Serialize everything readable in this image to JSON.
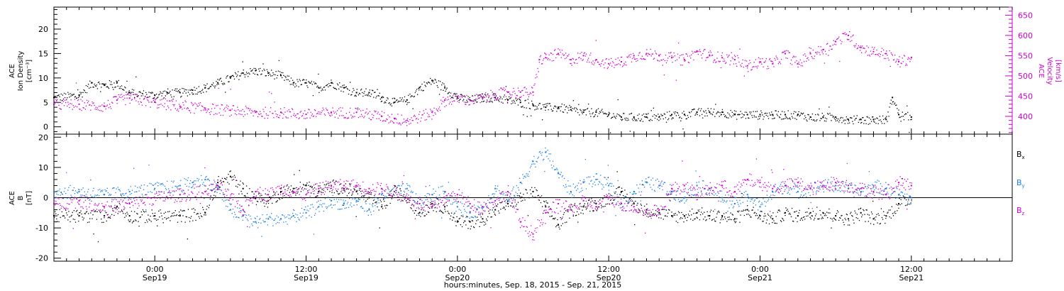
{
  "chart_data": [
    {
      "type": "scatter",
      "panel": "top",
      "xlabel": "hours:minutes, Sep. 18, 2015 - Sep. 21, 2015",
      "x_ticks": [
        {
          "hours": 0,
          "time": "0:00",
          "date": "Sep19"
        },
        {
          "hours": 12,
          "time": "12:00",
          "date": "Sep19"
        },
        {
          "hours": 24,
          "time": "0:00",
          "date": "Sep20"
        },
        {
          "hours": 36,
          "time": "12:00",
          "date": "Sep20"
        },
        {
          "hours": 48,
          "time": "0:00",
          "date": "Sep21"
        },
        {
          "hours": 60,
          "time": "12:00",
          "date": "Sep21"
        }
      ],
      "x_range_hours": [
        -8,
        68
      ],
      "left_axis": {
        "label_lines": [
          "ACE",
          "Ion Density",
          "[cm⁻³]"
        ],
        "range": [
          -1.5,
          24.5
        ],
        "ticks": [
          0,
          5,
          10,
          15,
          20
        ],
        "color": "#000000"
      },
      "right_axis": {
        "label_lines": [
          "ACE",
          "Velocity",
          "[km/s]"
        ],
        "range": [
          356,
          670
        ],
        "ticks": [
          400,
          450,
          500,
          550,
          600,
          650
        ],
        "color": "#cc00cc"
      },
      "series": [
        {
          "axis": "left",
          "color": "#000000",
          "x": [
            -8,
            -6,
            -5,
            -4,
            -3,
            -2,
            0,
            1,
            2,
            3,
            4,
            5,
            6,
            7,
            8,
            9,
            10,
            11,
            12,
            13,
            14,
            15,
            16,
            17,
            18,
            19,
            20,
            21,
            22,
            23,
            24,
            25,
            26,
            27,
            28,
            29,
            30,
            31,
            32,
            33,
            34,
            35,
            36,
            37,
            38,
            39,
            40,
            41,
            42,
            43,
            44,
            45,
            46,
            47,
            48,
            49,
            50,
            51,
            52,
            53,
            54,
            55,
            56,
            57,
            58,
            58.5,
            59,
            60
          ],
          "y": [
            6,
            6.5,
            9,
            8.5,
            9,
            7,
            6.5,
            7,
            7,
            7.5,
            8,
            9,
            10,
            11,
            11.5,
            11,
            10.5,
            9,
            9,
            8,
            9,
            8,
            7,
            7,
            6,
            5,
            5.5,
            8,
            9.5,
            8,
            6,
            5.5,
            6,
            6,
            5.5,
            5,
            4.5,
            4,
            4,
            3.5,
            3,
            3,
            2.5,
            2,
            2,
            2,
            2,
            2.5,
            2.5,
            3,
            3,
            3,
            2.5,
            2.5,
            2.5,
            2.5,
            2.5,
            2.5,
            2,
            2,
            2,
            1.5,
            1.5,
            1.5,
            1.5,
            6,
            2.5,
            2
          ]
        },
        {
          "axis": "right",
          "color": "#cc00cc",
          "x": [
            -8,
            -6,
            -4,
            -3,
            -2,
            0,
            2,
            4,
            6,
            8,
            10,
            12,
            14,
            16,
            18,
            19,
            20,
            22,
            23,
            24,
            25,
            26,
            27,
            28,
            29,
            30,
            30.5,
            31,
            32,
            33,
            34,
            35,
            36,
            37,
            38,
            39,
            40,
            41,
            42,
            43,
            44,
            45,
            46,
            47,
            48,
            49,
            50,
            51,
            52,
            53,
            54,
            55,
            56,
            57,
            58,
            59,
            60
          ],
          "y": [
            430,
            430,
            425,
            440,
            445,
            435,
            425,
            420,
            415,
            410,
            410,
            405,
            410,
            410,
            400,
            395,
            390,
            410,
            440,
            445,
            440,
            445,
            455,
            460,
            460,
            460,
            540,
            545,
            555,
            540,
            550,
            540,
            530,
            535,
            550,
            555,
            550,
            545,
            540,
            560,
            550,
            545,
            540,
            525,
            535,
            530,
            555,
            530,
            555,
            565,
            585,
            600,
            570,
            560,
            555,
            535,
            545
          ]
        }
      ]
    },
    {
      "type": "scatter",
      "panel": "bottom",
      "left_axis": {
        "label_lines": [
          "ACE",
          "B",
          "[nT]"
        ],
        "range": [
          -21,
          21
        ],
        "ticks": [
          -20,
          -10,
          0,
          10,
          20
        ]
      },
      "zero_line": true,
      "series": [
        {
          "name": "Bx",
          "name_main": "B",
          "name_sub": "x",
          "color": "#000000",
          "x": [
            -8,
            -6,
            -4,
            -3,
            -2,
            0,
            2,
            4,
            5,
            6,
            7,
            8,
            9,
            10,
            11,
            12,
            13,
            14,
            15,
            16,
            17,
            18,
            19,
            20,
            21,
            22,
            23,
            24,
            25,
            26,
            27,
            28,
            29,
            30,
            31,
            32,
            33,
            34,
            35,
            36,
            37,
            38,
            39,
            40,
            41,
            42,
            43,
            44,
            45,
            46,
            47,
            48,
            49,
            50,
            51,
            52,
            53,
            54,
            55,
            56,
            57,
            58,
            59,
            60
          ],
          "y": [
            -6,
            -6,
            -6,
            -3,
            -6,
            -6,
            -6,
            -5,
            5,
            7,
            3,
            0,
            -1,
            2,
            3,
            4,
            2,
            4,
            3,
            2,
            0,
            -3,
            2,
            0,
            -5,
            -2,
            -3,
            -8,
            -8,
            -7,
            -4,
            -2,
            0,
            2,
            -3,
            -9,
            -4,
            -3,
            -2,
            0,
            2,
            -2,
            -4,
            -5,
            -6,
            -6,
            -5,
            -6,
            -6,
            -7,
            -4,
            -6,
            -7,
            -5,
            -6,
            -5,
            -5,
            -6,
            -7,
            -5,
            -7,
            -6,
            -2,
            0
          ]
        },
        {
          "name": "By",
          "name_main": "B",
          "name_sub": "y",
          "color": "#1a7fe0",
          "x": [
            -8,
            -6,
            -4,
            -2,
            0,
            2,
            3,
            4,
            5,
            6,
            7,
            8,
            9,
            10,
            11,
            12,
            13,
            14,
            15,
            16,
            17,
            18,
            19,
            20,
            21,
            22,
            23,
            24,
            25,
            26,
            27,
            28,
            29,
            30,
            31,
            32,
            33,
            34,
            35,
            36,
            37,
            38,
            39,
            40,
            41,
            42,
            43,
            44,
            45,
            46,
            47,
            48,
            49,
            50,
            51,
            52,
            53,
            54,
            55,
            56,
            57,
            58,
            59,
            60
          ],
          "y": [
            2,
            2,
            1,
            2,
            3,
            4,
            5,
            6,
            3,
            -4,
            -6,
            -8,
            -7,
            -7,
            -6,
            -5,
            -3,
            -1,
            -2,
            -1,
            -4,
            1,
            2,
            3,
            -2,
            1,
            2,
            -3,
            -5,
            -3,
            3,
            -1,
            5,
            12,
            15,
            8,
            2,
            5,
            6,
            4,
            -2,
            2,
            5,
            4,
            2,
            0,
            4,
            3,
            0,
            -2,
            1,
            -3,
            2,
            4,
            2,
            3,
            4,
            4,
            3,
            2,
            4,
            3,
            1,
            0
          ]
        },
        {
          "name": "Bz",
          "name_main": "B",
          "name_sub": "z",
          "color": "#cc00cc",
          "x": [
            -8,
            -6,
            -4,
            -2,
            0,
            2,
            4,
            5,
            6,
            7,
            8,
            9,
            10,
            11,
            12,
            13,
            14,
            15,
            16,
            17,
            18,
            19,
            20,
            21,
            22,
            23,
            24,
            25,
            26,
            27,
            28,
            29,
            30,
            31,
            32,
            33,
            34,
            35,
            36,
            37,
            38,
            39,
            40,
            41,
            42,
            43,
            44,
            45,
            46,
            47,
            48,
            49,
            50,
            51,
            52,
            53,
            54,
            55,
            56,
            57,
            58,
            59,
            60
          ],
          "y": [
            -2,
            -1,
            -3,
            -2,
            0,
            1,
            2,
            4,
            0,
            -4,
            2,
            1,
            3,
            2,
            1,
            3,
            4,
            4,
            4,
            3,
            3,
            2,
            0,
            -2,
            -3,
            0,
            1,
            -2,
            -3,
            -1,
            2,
            -8,
            -12,
            -5,
            -2,
            -4,
            -1,
            -3,
            0,
            -2,
            -3,
            -5,
            -4,
            3,
            4,
            1,
            3,
            4,
            2,
            6,
            5,
            3,
            4,
            5,
            3,
            4,
            5,
            4,
            3,
            2,
            1,
            5,
            4
          ]
        }
      ]
    }
  ]
}
